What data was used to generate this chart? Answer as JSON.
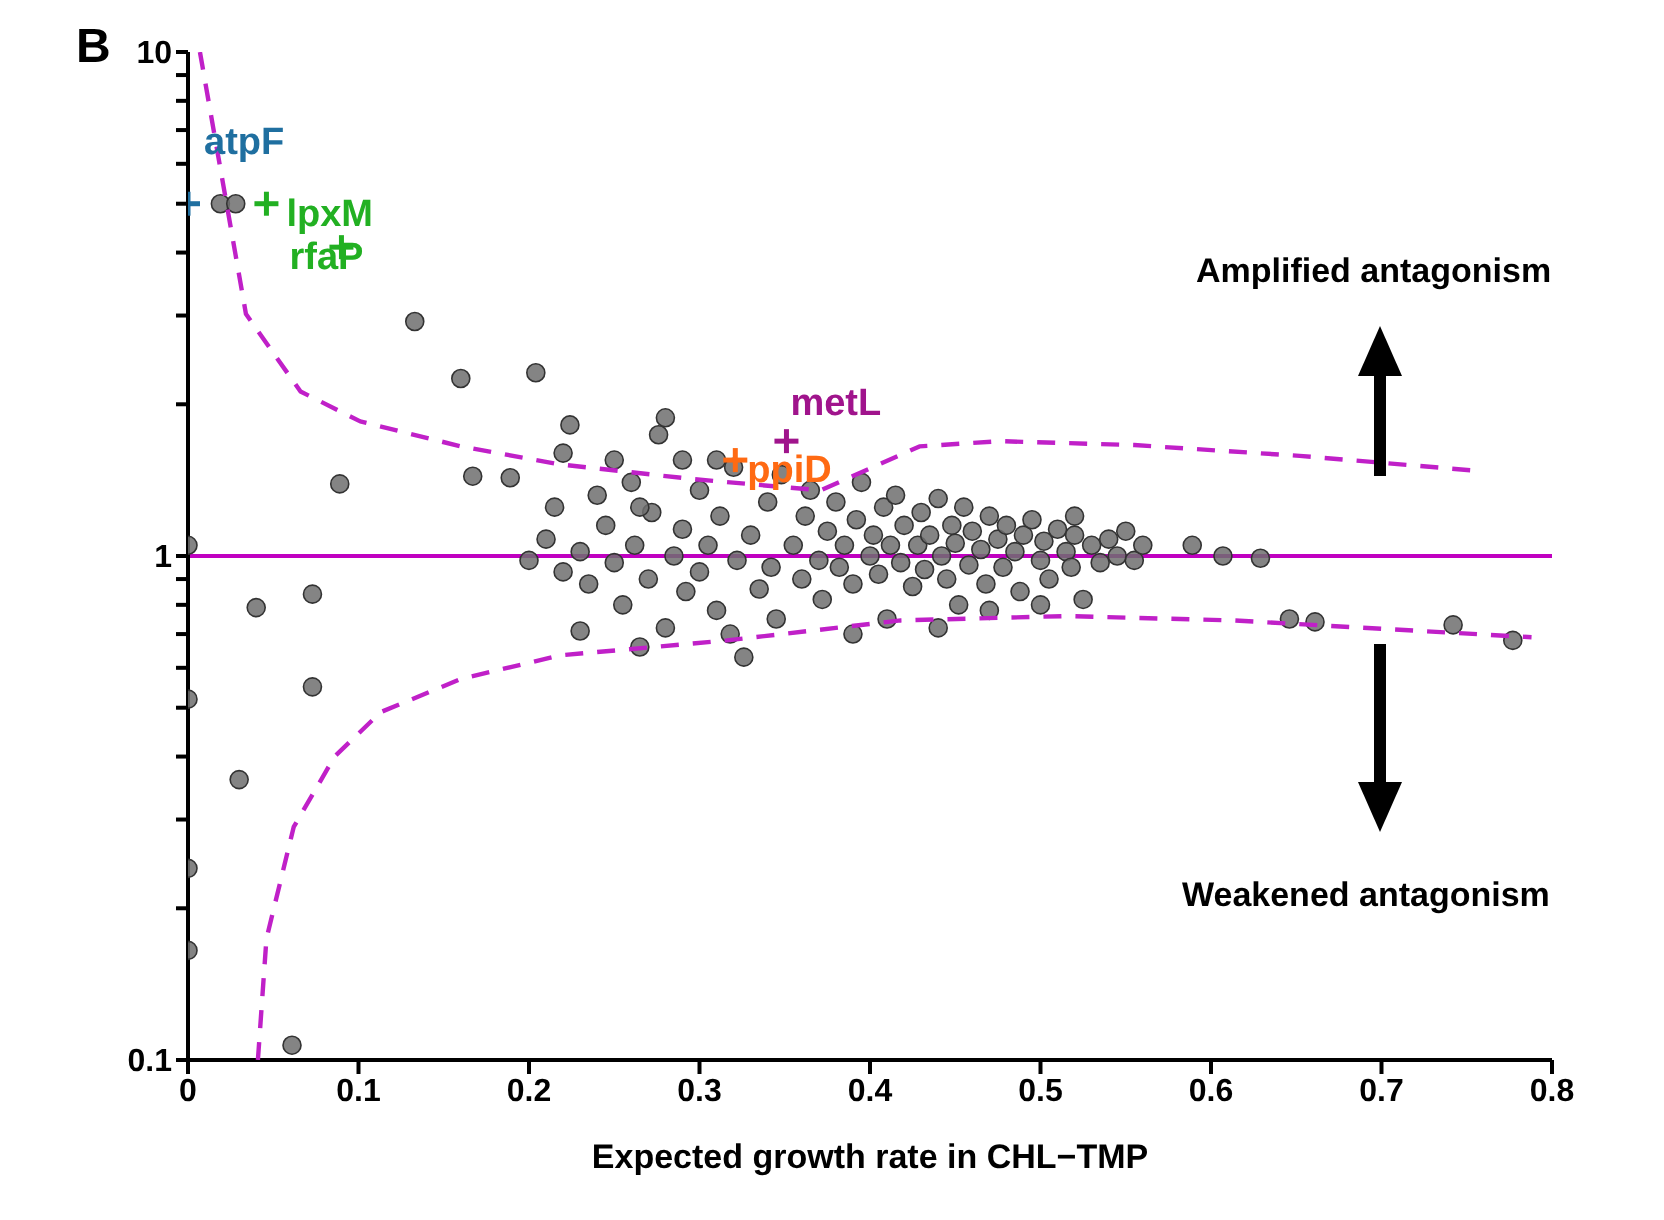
{
  "chart_data": {
    "type": "scatter",
    "xlabel": "Expected growth rate in CHL−TMP",
    "xlim": [
      0,
      0.8
    ],
    "xticks": [
      0,
      0.1,
      0.2,
      0.3,
      0.4,
      0.5,
      0.6,
      0.7,
      0.8
    ],
    "ylim": [
      0.1,
      10
    ],
    "log": "y",
    "yticks": [
      0.1,
      {
        "value": 0.2,
        "label": null
      },
      {
        "value": 0.3,
        "label": null
      },
      {
        "value": 0.4,
        "label": null
      },
      {
        "value": 0.5,
        "label": null
      },
      {
        "value": 0.6,
        "label": null
      },
      {
        "value": 0.7,
        "label": null
      },
      {
        "value": 0.8,
        "label": null
      },
      {
        "value": 0.9,
        "label": null
      },
      1,
      {
        "value": 2,
        "label": null
      },
      {
        "value": 3,
        "label": null
      },
      {
        "value": 4,
        "label": null
      },
      {
        "value": 5,
        "label": null
      },
      {
        "value": 6,
        "label": null
      },
      {
        "value": 7,
        "label": null
      },
      {
        "value": 8,
        "label": null
      },
      {
        "value": 9,
        "label": null
      },
      10
    ],
    "grid": false,
    "legend": false,
    "ref_lines": [
      {
        "axis": "y",
        "value": 1,
        "color": "#c000c0"
      }
    ],
    "annotations": [
      "B",
      "Amplified antagonism",
      "Weakened antagonism"
    ],
    "series": [
      {
        "color": "#6e6e6e",
        "marker": "circle",
        "x": [
          0.019,
          0.028,
          0,
          0,
          0,
          0,
          0.03,
          0.04,
          0.073,
          0.073,
          0.061,
          0.089,
          0.133,
          0.16,
          0.204,
          0.224,
          0.167,
          0.189,
          0.28,
          0.276,
          0.326,
          0.589,
          0.607,
          0.629,
          0.646,
          0.661,
          0.742,
          0.777,
          0.2,
          0.21,
          0.22,
          0.215,
          0.23,
          0.235,
          0.24,
          0.245,
          0.25,
          0.255,
          0.26,
          0.262,
          0.27,
          0.272,
          0.28,
          0.285,
          0.29,
          0.292,
          0.3,
          0.3,
          0.305,
          0.31,
          0.312,
          0.318,
          0.32,
          0.322,
          0.33,
          0.335,
          0.34,
          0.342,
          0.345,
          0.348,
          0.23,
          0.265,
          0.22,
          0.25,
          0.29,
          0.31,
          0.265,
          0.355,
          0.36,
          0.362,
          0.365,
          0.37,
          0.372,
          0.375,
          0.38,
          0.382,
          0.385,
          0.39,
          0.392,
          0.395,
          0.4,
          0.402,
          0.405,
          0.408,
          0.41,
          0.412,
          0.415,
          0.418,
          0.42,
          0.425,
          0.428,
          0.43,
          0.432,
          0.435,
          0.44,
          0.442,
          0.445,
          0.448,
          0.45,
          0.452,
          0.455,
          0.458,
          0.46,
          0.465,
          0.468,
          0.47,
          0.475,
          0.478,
          0.48,
          0.485,
          0.488,
          0.49,
          0.495,
          0.5,
          0.502,
          0.505,
          0.51,
          0.515,
          0.518,
          0.52,
          0.525,
          0.53,
          0.535,
          0.54,
          0.545,
          0.55,
          0.555,
          0.56,
          0.44,
          0.47,
          0.5,
          0.39,
          0.52
        ],
        "values": [
          5,
          5,
          1.05,
          0.52,
          0.24,
          0.165,
          0.36,
          0.79,
          0.84,
          0.55,
          0.107,
          1.39,
          2.92,
          2.25,
          2.31,
          1.82,
          1.44,
          1.43,
          1.88,
          1.74,
          0.63,
          1.05,
          1.0,
          0.99,
          0.75,
          0.74,
          0.73,
          0.68,
          0.98,
          1.08,
          0.93,
          1.25,
          1.02,
          0.88,
          1.32,
          1.15,
          0.97,
          0.8,
          1.4,
          1.05,
          0.9,
          1.22,
          0.72,
          1.0,
          1.13,
          0.85,
          1.35,
          0.93,
          1.05,
          0.78,
          1.2,
          0.7,
          1.5,
          0.98,
          1.1,
          0.86,
          1.28,
          0.95,
          0.75,
          1.45,
          0.71,
          0.66,
          1.6,
          1.55,
          1.55,
          1.55,
          1.25,
          1.05,
          0.9,
          1.2,
          1.35,
          0.98,
          0.82,
          1.12,
          1.28,
          0.95,
          1.05,
          0.88,
          1.18,
          1.4,
          1.0,
          1.1,
          0.92,
          1.25,
          0.75,
          1.05,
          1.32,
          0.97,
          1.15,
          0.87,
          1.05,
          1.22,
          0.94,
          1.1,
          1.3,
          1.0,
          0.9,
          1.15,
          1.06,
          0.8,
          1.25,
          0.96,
          1.12,
          1.03,
          0.88,
          1.2,
          1.08,
          0.95,
          1.15,
          1.02,
          0.85,
          1.1,
          1.18,
          0.98,
          1.07,
          0.9,
          1.13,
          1.02,
          0.95,
          1.1,
          0.82,
          1.05,
          0.97,
          1.08,
          1.0,
          1.12,
          0.98,
          1.05,
          0.72,
          0.78,
          0.8,
          0.7,
          1.2
        ]
      },
      {
        "type": "line",
        "color": "#c020c8",
        "marker": "none",
        "line_style": "dashed",
        "x": [
          0.007,
          0.034,
          0.066,
          0.101,
          0.16,
          0.218,
          0.297,
          0.371,
          0.429,
          0.476,
          0.555,
          0.652,
          0.752
        ],
        "values": [
          10,
          3.02,
          2.12,
          1.85,
          1.65,
          1.52,
          1.42,
          1.35,
          1.65,
          1.69,
          1.66,
          1.58,
          1.48
        ]
      },
      {
        "type": "line",
        "color": "#c020c8",
        "marker": "none",
        "line_style": "dashed",
        "x": [
          0.041,
          0.046,
          0.062,
          0.086,
          0.113,
          0.16,
          0.218,
          0.316,
          0.418,
          0.515,
          0.613,
          0.788
        ],
        "values": [
          0.1,
          0.174,
          0.29,
          0.4,
          0.49,
          0.57,
          0.635,
          0.68,
          0.745,
          0.76,
          0.745,
          0.69
        ]
      },
      {
        "name": "atpF",
        "color": "#1f6fa0",
        "marker": "cross",
        "x": [
          0
        ],
        "values": [
          5
        ]
      },
      {
        "name": "lpxM",
        "color": "#22b022",
        "marker": "cross",
        "x": [
          0.046
        ],
        "values": [
          5
        ]
      },
      {
        "name": "rfaP",
        "color": "#22b022",
        "marker": "cross",
        "x": [
          0.09
        ],
        "values": [
          4.1
        ]
      },
      {
        "name": "metL",
        "color": "#a0148c",
        "marker": "cross",
        "x": [
          0.351
        ],
        "values": [
          1.69
        ]
      },
      {
        "name": "ppiD",
        "color": "#ff6a13",
        "marker": "cross",
        "x": [
          0.321
        ],
        "values": [
          1.55
        ]
      }
    ]
  }
}
